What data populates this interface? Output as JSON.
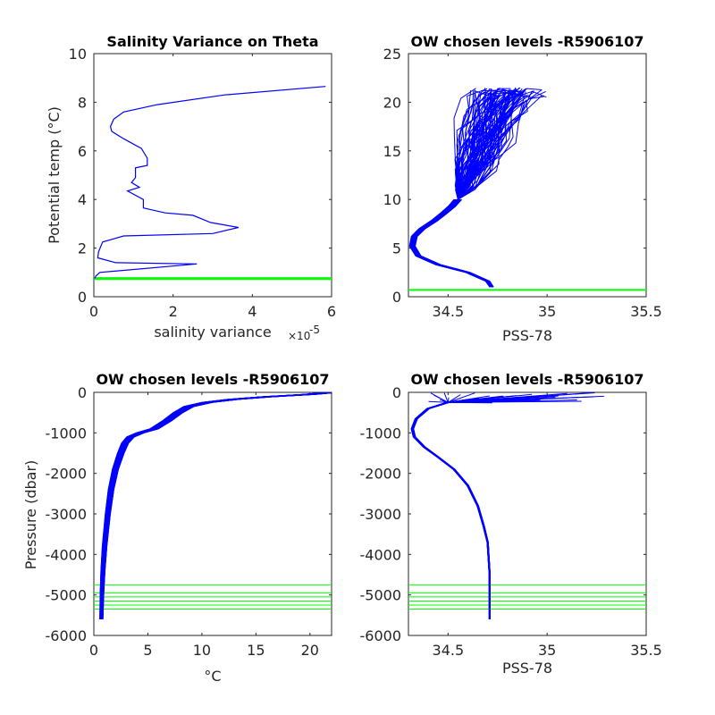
{
  "chart_data": [
    {
      "type": "line",
      "title": "Salinity Variance on Theta",
      "xlabel": "salinity variance",
      "x_exponent_base": "×10",
      "x_exponent_power": "-5",
      "ylabel": "Potential temp (°C)",
      "xlim": [
        0,
        6
      ],
      "ylim": [
        0,
        10
      ],
      "xticks": [
        "0",
        "2",
        "4",
        "6"
      ],
      "yticks": [
        "0",
        "2",
        "4",
        "6",
        "8",
        "10"
      ],
      "colors": {
        "line": "#0000ff",
        "level": "#00ff00"
      },
      "chosen_level_y": 0.75,
      "series": [
        {
          "x": [
            5.85,
            3.3,
            1.6,
            0.75,
            0.5,
            0.42,
            0.45,
            0.75,
            1.2,
            1.35,
            1.35,
            1.05,
            1.05,
            0.95,
            1.15,
            0.85,
            1.25,
            1.25,
            1.8,
            2.5,
            2.95,
            3.65,
            3.0,
            0.75,
            0.22,
            0.12,
            0.1,
            0.55,
            2.6,
            0.15,
            0.05,
            0.02
          ],
          "y": [
            8.65,
            8.3,
            7.9,
            7.6,
            7.3,
            7.0,
            6.8,
            6.5,
            6.1,
            5.7,
            5.4,
            5.3,
            4.9,
            4.7,
            4.5,
            4.35,
            4.0,
            3.65,
            3.45,
            3.35,
            3.05,
            2.85,
            2.6,
            2.5,
            2.25,
            1.85,
            1.6,
            1.4,
            1.35,
            1.0,
            0.85,
            0.75
          ]
        }
      ]
    },
    {
      "type": "line",
      "title": "OW chosen levels -R5906107",
      "xlabel": "PSS-78",
      "ylabel": "",
      "xlim": [
        34.3,
        35.5
      ],
      "ylim": [
        0,
        25
      ],
      "xticks": [
        "34.5",
        "35",
        "35.5"
      ],
      "yticks": [
        "0",
        "5",
        "10",
        "15",
        "20",
        "25"
      ],
      "colors": {
        "line": "#0000ff",
        "level": "#00ff00"
      },
      "chosen_level_y": 0.7,
      "series": [
        {
          "name": "",
          "x": [
            34.72,
            34.7,
            34.6,
            34.45,
            34.35,
            34.32,
            34.33,
            34.37,
            34.43,
            34.48,
            34.52,
            34.55
          ],
          "y": [
            1.0,
            1.6,
            2.5,
            3.3,
            4.2,
            5.2,
            6.2,
            7.0,
            7.8,
            8.6,
            9.3,
            10.0
          ]
        }
      ]
    },
    {
      "type": "line",
      "title": "OW chosen levels -R5906107",
      "xlabel": "°C",
      "ylabel": "Pressure (dbar)",
      "xlim": [
        0,
        22
      ],
      "ylim": [
        -6000,
        0
      ],
      "xticks": [
        "0",
        "5",
        "10",
        "15",
        "20"
      ],
      "yticks": [
        "-6000",
        "-5000",
        "-4000",
        "-3000",
        "-2000",
        "-1000",
        "0"
      ],
      "colors": {
        "line": "#0000ff",
        "level": "#00ff00"
      },
      "chosen_levels_y": [
        -4750,
        -4950,
        -5050,
        -5150,
        -5250,
        -5350
      ],
      "series": [
        {
          "x": [
            0.7,
            0.75,
            0.85,
            1.0,
            1.3,
            1.6,
            2.0,
            2.5,
            2.9,
            3.4,
            4.3,
            5.6,
            6.8,
            7.8,
            8.8,
            10.5,
            13.0,
            16.0,
            20.0,
            22.0
          ],
          "y": [
            -5600,
            -5000,
            -4400,
            -3800,
            -3000,
            -2400,
            -1900,
            -1500,
            -1250,
            -1100,
            -1000,
            -900,
            -700,
            -500,
            -350,
            -250,
            -170,
            -110,
            -50,
            0
          ]
        }
      ]
    },
    {
      "type": "line",
      "title": "OW chosen levels -R5906107",
      "xlabel": "PSS-78",
      "ylabel": "",
      "xlim": [
        34.3,
        35.5
      ],
      "ylim": [
        -6000,
        0
      ],
      "xticks": [
        "34.5",
        "35",
        "35.5"
      ],
      "yticks": [
        "-6000",
        "-5000",
        "-4000",
        "-3000",
        "-2000",
        "-1000",
        "0"
      ],
      "colors": {
        "line": "#0000ff",
        "level": "#00ff00"
      },
      "chosen_levels_y": [
        -4750,
        -4950,
        -5050,
        -5150,
        -5250,
        -5350
      ],
      "series": [
        {
          "x": [
            34.71,
            34.71,
            34.7,
            34.68,
            34.65,
            34.6,
            34.53,
            34.45,
            34.38,
            34.33,
            34.32,
            34.34,
            34.4,
            34.5,
            34.65
          ],
          "y": [
            -5600,
            -4500,
            -3700,
            -3300,
            -2800,
            -2300,
            -1900,
            -1600,
            -1350,
            -1100,
            -900,
            -650,
            -400,
            -250,
            -150
          ]
        }
      ]
    }
  ]
}
